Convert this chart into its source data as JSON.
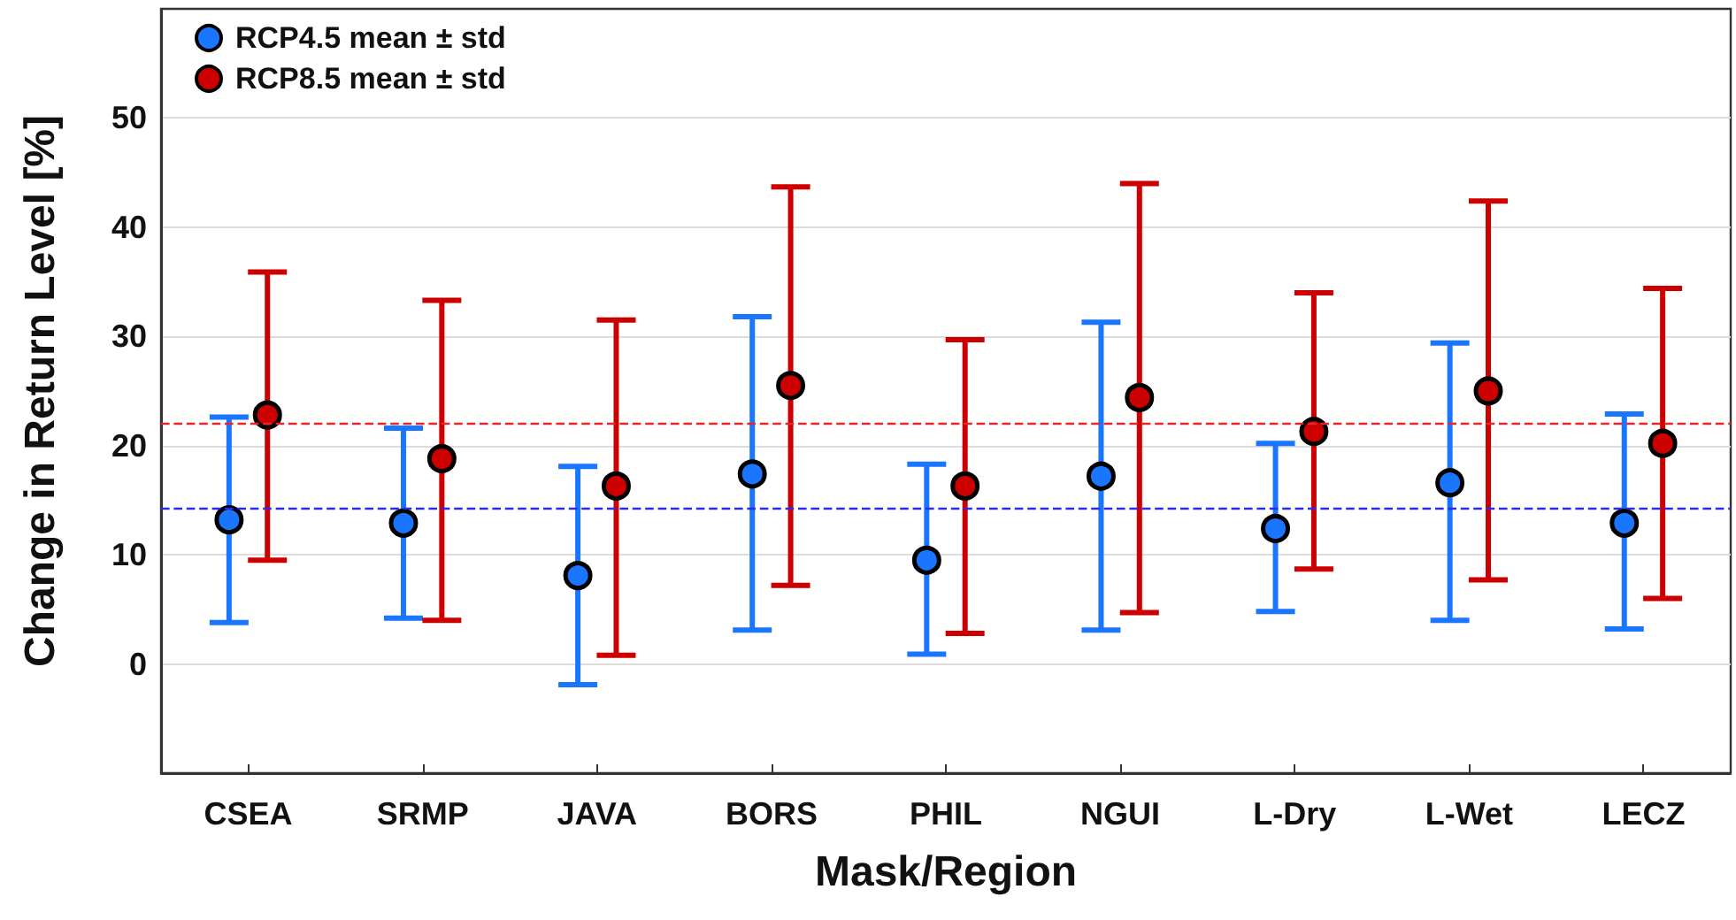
{
  "chart_data": {
    "type": "scatter",
    "xlabel": "Mask/Region",
    "ylabel": "Change in Return Level [%]",
    "categories": [
      "CSEA",
      "SRMP",
      "JAVA",
      "BORS",
      "PHIL",
      "NGUI",
      "L-Dry",
      "L-Wet",
      "LECZ"
    ],
    "series": [
      {
        "name": "RCP4.5 mean ± std",
        "color": "#1a75ff",
        "values": [
          13.2,
          12.9,
          8.1,
          17.4,
          9.5,
          17.2,
          12.4,
          16.6,
          12.9
        ],
        "errors": [
          [
            3.8,
            22.6
          ],
          [
            4.2,
            21.6
          ],
          [
            -1.9,
            18.1
          ],
          [
            3.1,
            31.8
          ],
          [
            0.9,
            18.3
          ],
          [
            3.1,
            31.3
          ],
          [
            4.8,
            20.2
          ],
          [
            4.0,
            29.4
          ],
          [
            3.2,
            22.9
          ]
        ]
      },
      {
        "name": "RCP8.5 mean ± std",
        "color": "#cc0000",
        "values": [
          22.8,
          18.8,
          16.3,
          25.5,
          16.3,
          24.4,
          21.3,
          25.0,
          20.2
        ],
        "errors": [
          [
            9.5,
            35.9
          ],
          [
            4.0,
            33.3
          ],
          [
            0.8,
            31.5
          ],
          [
            7.2,
            43.7
          ],
          [
            2.8,
            29.7
          ],
          [
            4.7,
            44.0
          ],
          [
            8.7,
            34.0
          ],
          [
            7.7,
            42.4
          ],
          [
            6.0,
            34.4
          ]
        ]
      }
    ],
    "ylim": [
      -10,
      60
    ],
    "yticks": [
      0,
      10,
      20,
      30,
      40,
      50
    ],
    "ref_lines": [
      {
        "axis": "y",
        "value": 22.0,
        "color": "#e8262a",
        "line_style": "dashed"
      },
      {
        "axis": "y",
        "value": 14.2,
        "color": "#2a2ae8",
        "line_style": "dashed"
      }
    ],
    "grid": "y",
    "legend": "top left",
    "marker": "circle"
  }
}
